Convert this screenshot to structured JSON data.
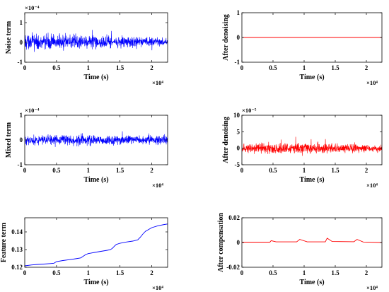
{
  "chart_data": [
    {
      "type": "line",
      "xlabel": "Time (s)",
      "ylabel": "Noise term",
      "y_multiplier": "×10⁻⁴",
      "x_multiplier": "×10⁴",
      "xlim": [
        0,
        2.25
      ],
      "ylim": [
        -1,
        1.5
      ],
      "xticks": [
        0,
        0.5,
        1,
        1.5,
        2
      ],
      "yticks": [
        -1,
        0,
        1
      ],
      "xtick_labels": [
        "0",
        "0.5",
        "1",
        "1.5",
        "2"
      ],
      "ytick_labels": [
        "-1",
        "0",
        "1"
      ],
      "color": "#0000ff",
      "signal": "dense noise",
      "series": [
        {
          "x": [
            0,
            0.5,
            1,
            1.5,
            2,
            2.25
          ],
          "y": [
            0.05,
            0.0,
            0.05,
            0.0,
            0.05,
            0.0
          ],
          "amplitude": [
            0.55,
            0.55,
            0.5,
            0.4,
            0.3,
            0.25
          ]
        }
      ]
    },
    {
      "type": "line",
      "xlabel": "Time (s)",
      "ylabel": "After denoising",
      "x_multiplier": "×10⁴",
      "xlim": [
        0,
        2.25
      ],
      "ylim": [
        -1,
        1
      ],
      "xticks": [
        0,
        0.5,
        1,
        1.5,
        2
      ],
      "yticks": [
        -1,
        0,
        1
      ],
      "xtick_labels": [
        "0",
        "0.5",
        "1",
        "1.5",
        "2"
      ],
      "ytick_labels": [
        "-1",
        "0",
        "1"
      ],
      "color": "#ff0000",
      "signal": "flat line",
      "series": [
        {
          "x": [
            0,
            2.25
          ],
          "y": [
            0,
            0
          ]
        }
      ]
    },
    {
      "type": "line",
      "xlabel": "Time (s)",
      "ylabel": "Mixed term",
      "y_multiplier": "×10⁻⁴",
      "x_multiplier": "×10⁴",
      "xlim": [
        0,
        2.25
      ],
      "ylim": [
        -1,
        1
      ],
      "xticks": [
        0,
        0.5,
        1,
        1.5,
        2
      ],
      "yticks": [
        -1,
        0,
        1
      ],
      "xtick_labels": [
        "0",
        "0.5",
        "1",
        "1.5",
        "2"
      ],
      "ytick_labels": [
        "-1",
        "0",
        "1"
      ],
      "color": "#0000ff",
      "signal": "dense noise",
      "series": [
        {
          "x": [
            0,
            0.5,
            1,
            1.5,
            2,
            2.25
          ],
          "y": [
            0,
            0,
            0,
            0,
            0,
            0
          ],
          "amplitude": [
            0.25,
            0.3,
            0.3,
            0.25,
            0.25,
            0.3
          ]
        }
      ]
    },
    {
      "type": "line",
      "xlabel": "Time (s)",
      "ylabel": "After denoising",
      "y_multiplier": "×10⁻⁵",
      "x_multiplier": "×10⁴",
      "xlim": [
        0,
        2.25
      ],
      "ylim": [
        -5,
        10
      ],
      "xticks": [
        0,
        0.5,
        1,
        1.5,
        2
      ],
      "yticks": [
        -5,
        0,
        5,
        10
      ],
      "xtick_labels": [
        "0",
        "0.5",
        "1",
        "1.5",
        "2"
      ],
      "ytick_labels": [
        "-5",
        "0",
        "5",
        "10"
      ],
      "color": "#ff0000",
      "signal": "dense noise",
      "series": [
        {
          "x": [
            0,
            0.5,
            1,
            1.5,
            2,
            2.25
          ],
          "y": [
            0,
            0,
            0,
            0,
            0,
            0
          ],
          "amplitude": [
            2.0,
            2.5,
            2.5,
            2.0,
            1.5,
            1.5
          ]
        }
      ]
    },
    {
      "type": "line",
      "xlabel": "Time (s)",
      "ylabel": "Feature term",
      "x_multiplier": "×10⁴",
      "xlim": [
        0,
        2.25
      ],
      "ylim": [
        0.12,
        0.148
      ],
      "xticks": [
        0,
        0.5,
        1,
        1.5,
        2
      ],
      "yticks": [
        0.12,
        0.13,
        0.14
      ],
      "xtick_labels": [
        "0",
        "0.5",
        "1",
        "1.5",
        "2"
      ],
      "ytick_labels": [
        "0.12",
        "0.13",
        "0.14"
      ],
      "color": "#0000ff",
      "signal": "smooth curve",
      "series": [
        {
          "x": [
            0,
            0.1,
            0.2,
            0.3,
            0.4,
            0.46,
            0.5,
            0.6,
            0.7,
            0.8,
            0.88,
            0.92,
            0.96,
            1.0,
            1.1,
            1.2,
            1.3,
            1.35,
            1.38,
            1.41,
            1.44,
            1.5,
            1.6,
            1.7,
            1.78,
            1.82,
            1.86,
            1.9,
            2.0,
            2.1,
            2.2,
            2.25
          ],
          "y": [
            0.1208,
            0.1213,
            0.1216,
            0.1218,
            0.1221,
            0.1223,
            0.1232,
            0.1238,
            0.1243,
            0.1248,
            0.1253,
            0.1262,
            0.1272,
            0.1277,
            0.1284,
            0.129,
            0.1296,
            0.13,
            0.1307,
            0.1319,
            0.1329,
            0.1336,
            0.1343,
            0.1348,
            0.1355,
            0.137,
            0.1388,
            0.1403,
            0.1424,
            0.1435,
            0.1442,
            0.1445
          ]
        }
      ]
    },
    {
      "type": "line",
      "xlabel": "Time (s)",
      "ylabel": "After compensation",
      "x_multiplier": "×10⁴",
      "xlim": [
        0,
        2.25
      ],
      "ylim": [
        -0.02,
        0.02
      ],
      "xticks": [
        0,
        0.5,
        1,
        1.5,
        2
      ],
      "yticks": [
        -0.02,
        0,
        0.02
      ],
      "xtick_labels": [
        "0",
        "0.5",
        "1",
        "1.5",
        "2"
      ],
      "ytick_labels": [
        "-0.02",
        "0",
        "0.02"
      ],
      "color": "#ff0000",
      "signal": "smooth curve",
      "series": [
        {
          "x": [
            0,
            0.45,
            0.47,
            0.55,
            0.88,
            0.93,
            1.05,
            1.34,
            1.37,
            1.45,
            1.8,
            1.85,
            1.95,
            2.25
          ],
          "y": [
            0.0003,
            0.0003,
            0.0015,
            0.0005,
            0.0005,
            0.0025,
            0.0005,
            0.0005,
            0.0035,
            0.0008,
            0.0006,
            0.0025,
            0.0004,
            0.0
          ]
        }
      ]
    }
  ]
}
